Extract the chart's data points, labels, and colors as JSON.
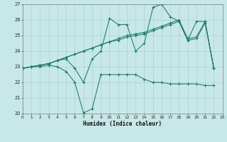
{
  "xlabel": "Humidex (Indice chaleur)",
  "bg_color": "#c8e8e8",
  "grid_color": "#a0cccc",
  "line_color": "#1a7a6e",
  "xlim": [
    0,
    23
  ],
  "ylim": [
    20,
    27
  ],
  "yticks": [
    20,
    21,
    22,
    23,
    24,
    25,
    26,
    27
  ],
  "xtick_labels": [
    "0",
    "1",
    "2",
    "3",
    "4",
    "5",
    "6",
    "7",
    "8",
    "9",
    "10",
    "11",
    "12",
    "13",
    "14",
    "15",
    "16",
    "17",
    "18",
    "19",
    "20",
    "21",
    "22",
    "23"
  ],
  "series": [
    [
      22.9,
      23.0,
      23.0,
      23.1,
      23.0,
      22.7,
      22.0,
      20.05,
      20.3,
      22.5,
      22.5,
      22.5,
      22.5,
      22.5,
      22.2,
      22.0,
      22.0,
      21.9,
      21.9,
      21.9,
      21.9,
      21.8,
      21.8
    ],
    [
      22.9,
      23.0,
      23.1,
      23.2,
      23.4,
      23.5,
      22.9,
      22.0,
      23.5,
      24.0,
      26.1,
      25.7,
      25.7,
      24.0,
      24.5,
      26.8,
      27.0,
      26.2,
      25.9,
      24.7,
      25.9,
      25.9,
      22.9
    ],
    [
      22.9,
      23.0,
      23.1,
      23.2,
      23.4,
      23.6,
      23.8,
      24.0,
      24.2,
      24.4,
      24.6,
      24.7,
      24.9,
      25.0,
      25.1,
      25.3,
      25.5,
      25.7,
      25.9,
      24.7,
      24.8,
      25.8,
      22.9
    ],
    [
      22.9,
      23.0,
      23.1,
      23.2,
      23.4,
      23.6,
      23.8,
      24.0,
      24.2,
      24.4,
      24.6,
      24.8,
      25.0,
      25.1,
      25.2,
      25.4,
      25.6,
      25.8,
      26.0,
      24.8,
      24.9,
      25.9,
      22.9
    ]
  ]
}
